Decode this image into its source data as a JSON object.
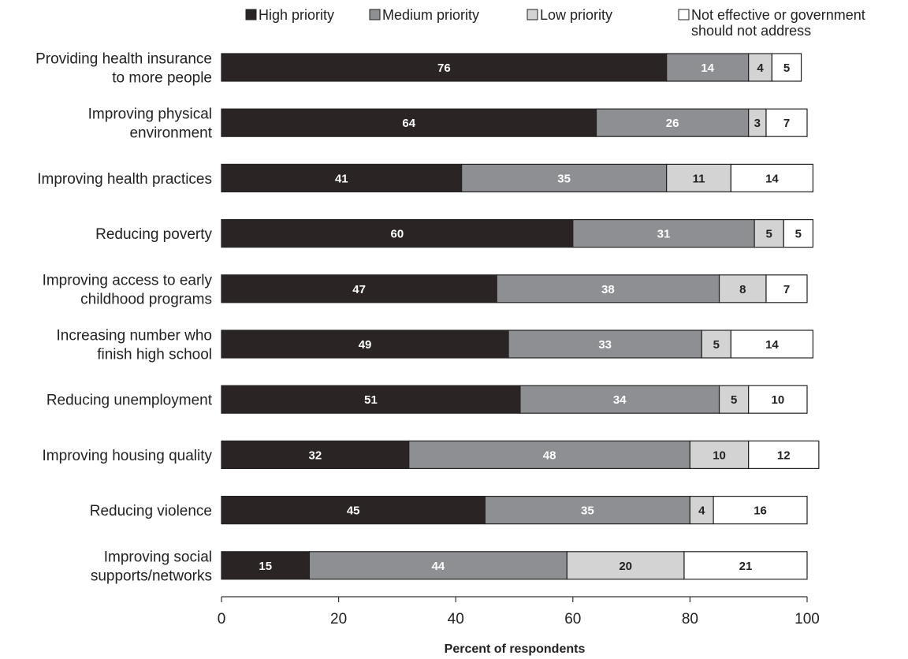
{
  "chart_data": {
    "type": "bar",
    "orientation": "horizontal",
    "stacked": true,
    "categories": [
      [
        "Providing health insurance",
        "to more people"
      ],
      [
        "Improving physical",
        "environment"
      ],
      [
        "Improving health practices"
      ],
      [
        "Reducing poverty"
      ],
      [
        "Improving access to early",
        "childhood programs"
      ],
      [
        "Increasing number who",
        "finish high school"
      ],
      [
        "Reducing unemployment"
      ],
      [
        "Improving housing quality"
      ],
      [
        "Reducing violence"
      ],
      [
        "Improving social",
        "supports/networks"
      ]
    ],
    "series": [
      {
        "name": "High priority",
        "color": "#2b2424",
        "label_color": "#ffffff",
        "values": [
          76,
          64,
          41,
          60,
          47,
          49,
          51,
          32,
          45,
          15
        ]
      },
      {
        "name": "Medium priority",
        "color": "#8e8f92",
        "label_color": "#ffffff",
        "values": [
          14,
          26,
          35,
          31,
          38,
          33,
          34,
          48,
          35,
          44
        ]
      },
      {
        "name": "Low priority",
        "color": "#d3d3d3",
        "label_color": "#222222",
        "values": [
          4,
          3,
          11,
          5,
          8,
          5,
          5,
          10,
          4,
          20
        ]
      },
      {
        "name_lines": [
          "Not effective or government",
          "should not address"
        ],
        "color": "#ffffff",
        "label_color": "#222222",
        "values": [
          5,
          7,
          14,
          5,
          7,
          14,
          10,
          12,
          16,
          21
        ]
      }
    ],
    "xlabel": "Percent of respondents",
    "xlim": [
      0,
      100
    ],
    "xticks": [
      0,
      20,
      40,
      60,
      80,
      100
    ],
    "legend_position": "top",
    "grid": false
  }
}
